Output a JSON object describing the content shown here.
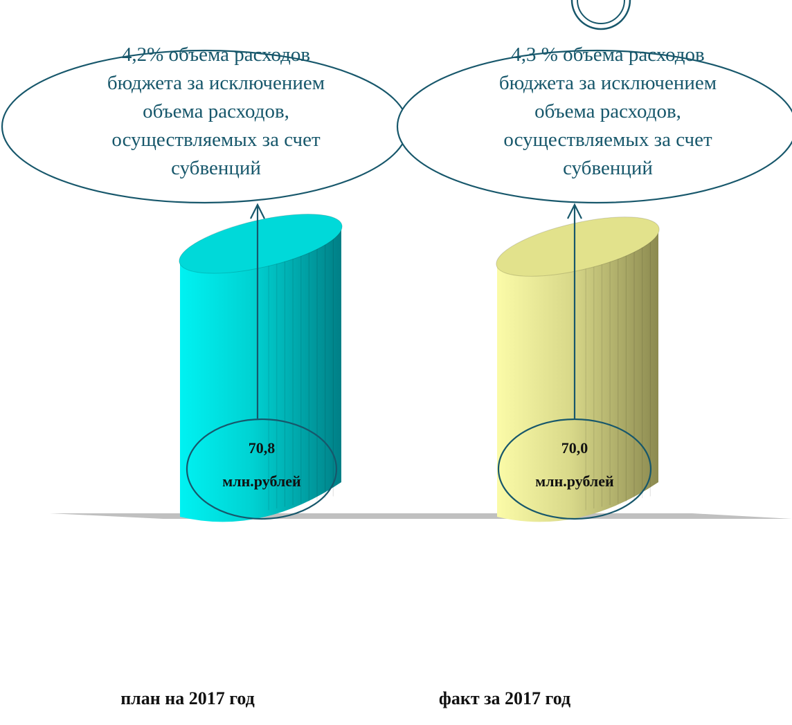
{
  "chart_data": {
    "type": "bar",
    "style": "3d-cylinder",
    "categories": [
      "план на 2017 год",
      "факт за 2017 год"
    ],
    "series": [
      {
        "values": [
          70.8,
          70.0
        ]
      }
    ],
    "value_labels": [
      {
        "value": "70,8",
        "unit": "млн.рублей"
      },
      {
        "value": "70,0",
        "unit": "млн.рублей"
      }
    ],
    "annotations": [
      [
        "4,2% объема расходов",
        "бюджета за исключением",
        "объема расходов,",
        "осуществляемых за счет",
        "субвенций"
      ],
      [
        "4,3 % объема расходов",
        "бюджета за исключением",
        "объема расходов,",
        "осуществляемых за счет",
        "субвенций"
      ]
    ],
    "colors": {
      "bar": [
        "#00d9d9",
        "#e2e28c"
      ],
      "floor": "#c0c0c0",
      "outline": "#17576b"
    },
    "grid": false,
    "legend": "none"
  }
}
